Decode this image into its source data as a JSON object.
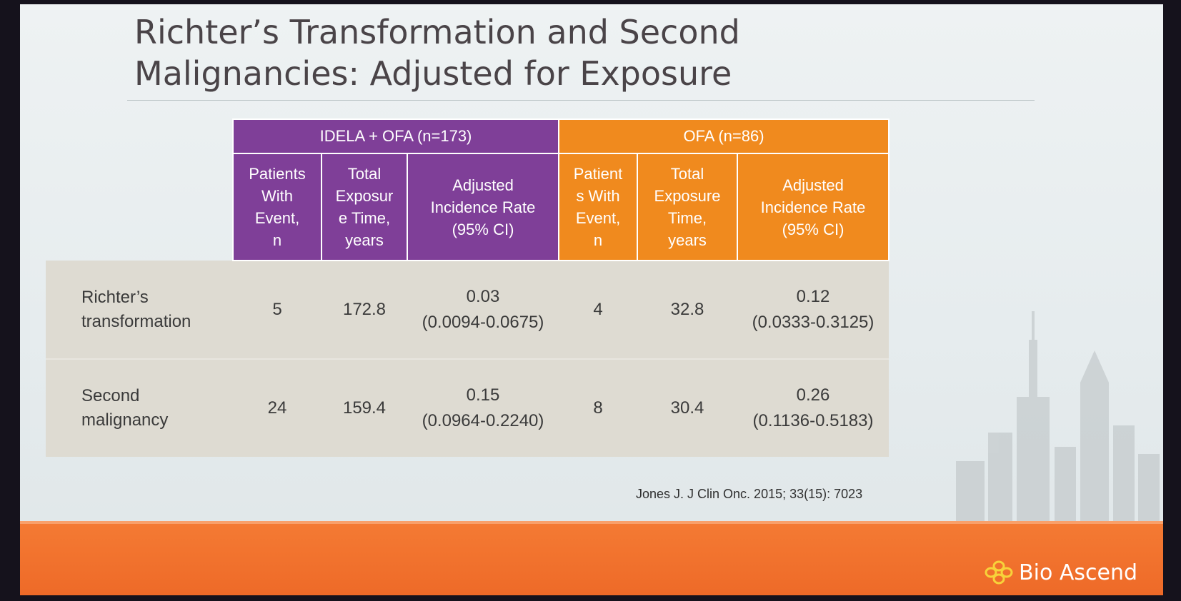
{
  "slide": {
    "title_line1": "Richter’s Transformation and Second",
    "title_line2": "Malignancies: Adjusted for Exposure"
  },
  "table": {
    "groups": [
      {
        "label": "IDELA + OFA (n=173)",
        "color": "#7f3f98"
      },
      {
        "label": "OFA (n=86)",
        "color": "#f08a1e"
      }
    ],
    "columns": [
      [
        "Patients",
        "With",
        "Event,",
        "n"
      ],
      [
        "Total",
        "Exposur",
        "e Time,",
        "years"
      ],
      [
        "Adjusted",
        "Incidence Rate",
        "(95% CI)"
      ],
      [
        "Patient",
        "s With",
        "Event,",
        "n"
      ],
      [
        "Total",
        "Exposure",
        "Time,",
        "years"
      ],
      [
        "Adjusted",
        "Incidence Rate",
        "(95% CI)"
      ]
    ],
    "rows": [
      {
        "label_line1": "Richter’s",
        "label_line2": "transformation",
        "idela_n": "5",
        "idela_time": "172.8",
        "idela_rate": "0.03",
        "idela_ci": "(0.0094-0.0675)",
        "ofa_n": "4",
        "ofa_time": "32.8",
        "ofa_rate": "0.12",
        "ofa_ci": "(0.0333-0.3125)"
      },
      {
        "label_line1": "Second",
        "label_line2": "malignancy",
        "idela_n": "24",
        "idela_time": "159.4",
        "idela_rate": "0.15",
        "idela_ci": "(0.0964-0.2240)",
        "ofa_n": "8",
        "ofa_time": "30.4",
        "ofa_rate": "0.26",
        "ofa_ci": "(0.1136-0.5183)"
      }
    ]
  },
  "citation": "Jones J. J Clin Onc. 2015; 33(15): 7023",
  "brand": {
    "name": "Bio Ascend",
    "logo_icon": "flower-icon"
  },
  "colors": {
    "accent_purple": "#7f3f98",
    "accent_orange": "#f08a1e",
    "band_orange": "#f47a33"
  }
}
